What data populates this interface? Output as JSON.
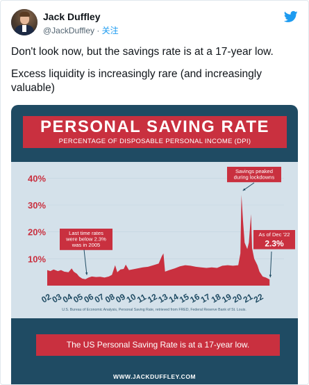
{
  "author": {
    "name": "Jack Duffley",
    "handle": "@JackDuffley",
    "separator": " · ",
    "follow_label": "关注"
  },
  "tweet": {
    "line1": "Don't look now, but the savings rate is at a 17-year low.",
    "line2": "Excess liquidity is increasingly rare (and increasingly valuable)"
  },
  "icons": {
    "avatar": "avatar",
    "brand": "twitter-bird-icon"
  },
  "colors": {
    "accent": "#1d9bf0",
    "banner_red": "#c9303f",
    "panel_blue": "#1f4b63",
    "chart_bg": "#d4e1ea"
  },
  "infographic": {
    "title": "PERSONAL SAVING RATE",
    "subtitle": "PERCENTAGE OF DISPOSABLE PERSONAL INCOME (DPI)",
    "source": "U.S. Bureau of Economic Analysis, Personal Saving Rate, retrieved from FRED, Federal Reserve Bank of St. Louis.",
    "callout": "The US Personal Saving Rate is at a 17-year low.",
    "website": "WWW.JACKDUFFLEY.COM"
  },
  "chart_data": {
    "type": "area",
    "title": "PERSONAL SAVING RATE",
    "subtitle": "PERCENTAGE OF DISPOSABLE PERSONAL INCOME (DPI)",
    "ylim": [
      0,
      45
    ],
    "y_ticks": [
      "10%",
      "20%",
      "30%",
      "40%"
    ],
    "y_tick_values": [
      10,
      20,
      30,
      40
    ],
    "x_ticks": [
      "02",
      "03",
      "04",
      "05",
      "06",
      "07",
      "08",
      "09",
      "10",
      "11",
      "12",
      "13",
      "14",
      "15",
      "16",
      "17",
      "18",
      "19",
      "20",
      "21",
      "22"
    ],
    "xlim": [
      2002,
      2023
    ],
    "series": [
      {
        "points": [
          [
            2002.0,
            5.8
          ],
          [
            2002.3,
            5.4
          ],
          [
            2002.6,
            6.0
          ],
          [
            2003.0,
            5.4
          ],
          [
            2003.3,
            5.8
          ],
          [
            2003.6,
            5.2
          ],
          [
            2004.0,
            5.0
          ],
          [
            2004.3,
            6.4
          ],
          [
            2004.5,
            5.2
          ],
          [
            2004.8,
            4.4
          ],
          [
            2005.0,
            3.4
          ],
          [
            2005.3,
            2.6
          ],
          [
            2005.6,
            2.4
          ],
          [
            2005.9,
            3.0
          ],
          [
            2006.2,
            3.4
          ],
          [
            2006.6,
            3.2
          ],
          [
            2007.0,
            3.3
          ],
          [
            2007.4,
            3.0
          ],
          [
            2007.8,
            3.4
          ],
          [
            2008.1,
            4.0
          ],
          [
            2008.4,
            7.6
          ],
          [
            2008.6,
            5.0
          ],
          [
            2008.9,
            6.0
          ],
          [
            2009.2,
            6.2
          ],
          [
            2009.4,
            7.8
          ],
          [
            2009.7,
            5.8
          ],
          [
            2010.0,
            6.0
          ],
          [
            2010.5,
            6.4
          ],
          [
            2011.0,
            6.8
          ],
          [
            2011.5,
            7.0
          ],
          [
            2012.0,
            7.6
          ],
          [
            2012.5,
            8.2
          ],
          [
            2012.8,
            11.0
          ],
          [
            2012.95,
            12.0
          ],
          [
            2013.1,
            5.2
          ],
          [
            2013.5,
            5.8
          ],
          [
            2014.0,
            6.4
          ],
          [
            2014.5,
            7.2
          ],
          [
            2015.0,
            7.6
          ],
          [
            2015.5,
            7.4
          ],
          [
            2016.0,
            7.0
          ],
          [
            2016.5,
            6.8
          ],
          [
            2017.0,
            6.6
          ],
          [
            2017.5,
            6.8
          ],
          [
            2018.0,
            6.6
          ],
          [
            2018.5,
            7.4
          ],
          [
            2019.0,
            7.6
          ],
          [
            2019.5,
            7.4
          ],
          [
            2020.0,
            7.6
          ],
          [
            2020.2,
            12.0
          ],
          [
            2020.3,
            33.8
          ],
          [
            2020.45,
            24.0
          ],
          [
            2020.6,
            16.0
          ],
          [
            2020.85,
            13.6
          ],
          [
            2021.0,
            16.0
          ],
          [
            2021.2,
            26.6
          ],
          [
            2021.3,
            14.0
          ],
          [
            2021.5,
            10.0
          ],
          [
            2021.8,
            7.6
          ],
          [
            2022.0,
            5.2
          ],
          [
            2022.3,
            3.4
          ],
          [
            2022.6,
            3.0
          ],
          [
            2022.95,
            2.3
          ]
        ]
      }
    ],
    "annotations": [
      {
        "text_lines": [
          "Savings peaked",
          "during lockdowns"
        ],
        "x": 2020.3,
        "y": 33.8
      },
      {
        "text_lines": [
          "Last time rates",
          "were below 2.3%",
          "was in 2005"
        ],
        "x": 2005.6,
        "y": 2.4
      },
      {
        "text_lines": [
          "As of Dec '22"
        ],
        "value_label": "2.3%",
        "x": 2022.95,
        "y": 2.3
      }
    ]
  }
}
